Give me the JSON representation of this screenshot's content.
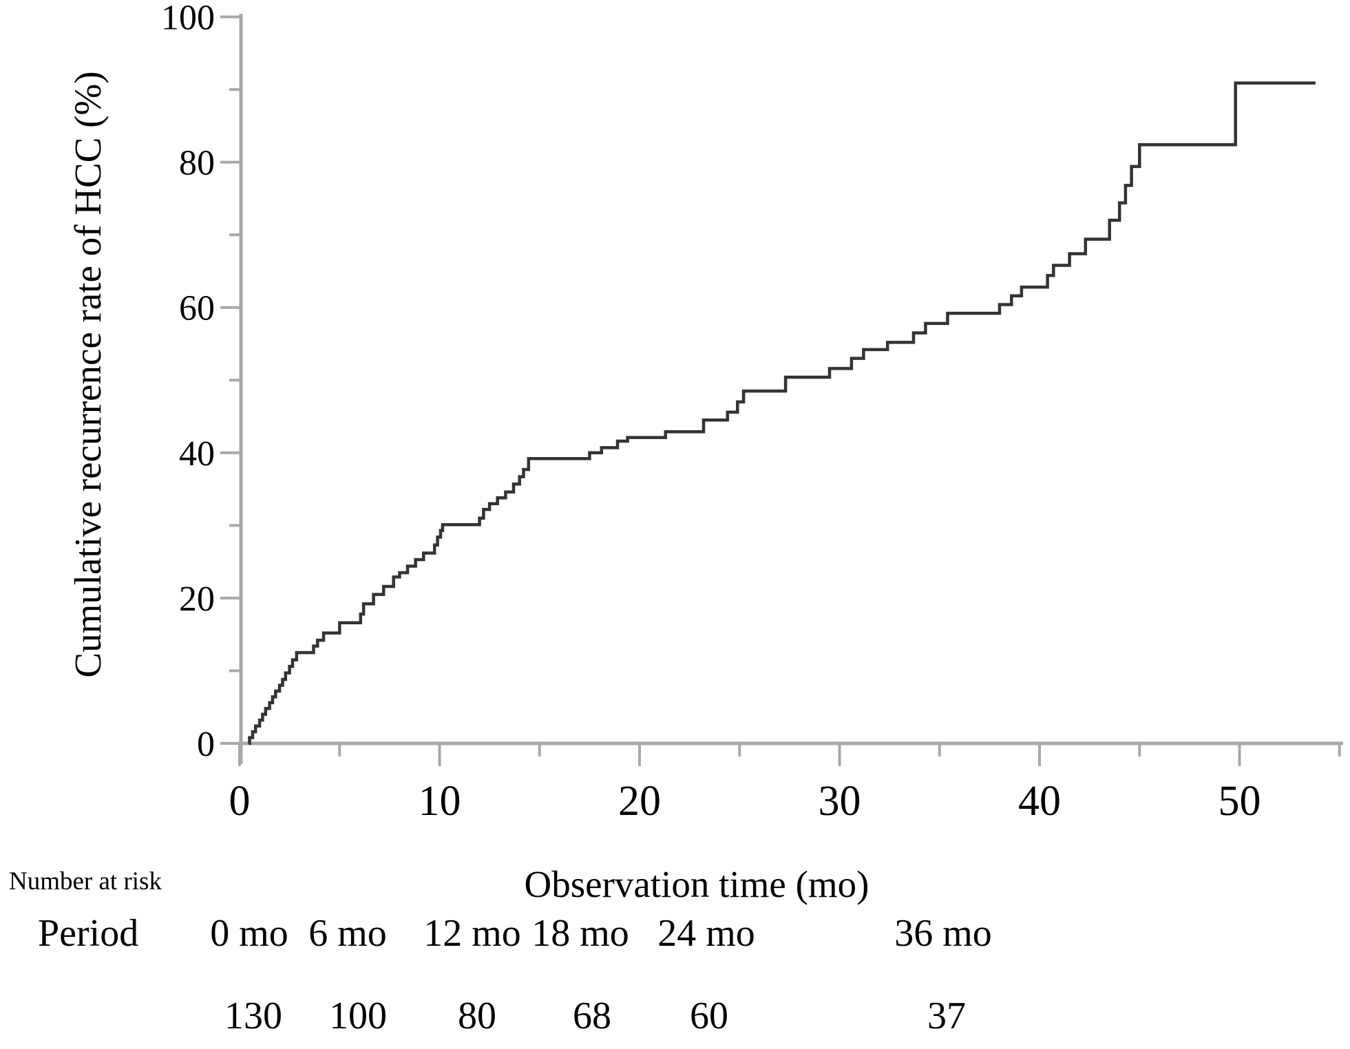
{
  "figure": {
    "background": "#ffffff",
    "colors": {
      "axis": "#a8a8a8",
      "curve": "#333333",
      "text": "#000000"
    },
    "y_axis": {
      "title": "Cumulative recurrence rate of HCC (%)",
      "major_ticks": [
        0,
        20,
        40,
        60,
        80,
        100
      ],
      "minor_ticks": [
        10,
        30,
        50,
        70,
        90
      ],
      "range": [
        0,
        100
      ]
    },
    "x_axis": {
      "title": "Observation time (mo)",
      "major_ticks": [
        0,
        10,
        20,
        30,
        40,
        50
      ],
      "minor_ticks": [
        5,
        15,
        25,
        35,
        45,
        55
      ],
      "range": [
        0,
        55.5
      ]
    }
  },
  "chart_data": {
    "type": "line",
    "subtype": "kaplan-meier-step",
    "title": "",
    "xlabel": "Observation time (mo)",
    "ylabel": "Cumulative recurrence rate of HCC (%)",
    "xlim": [
      0,
      55.5
    ],
    "ylim": [
      0,
      100
    ],
    "grid": false,
    "legend": "none",
    "series": [
      {
        "name": "Cumulative recurrence rate of HCC",
        "start": [
          0.45,
          0
        ],
        "end_x": 53.8,
        "steps": [
          [
            0.5,
            0.8
          ],
          [
            0.65,
            1.6
          ],
          [
            0.8,
            2.4
          ],
          [
            1.0,
            3.2
          ],
          [
            1.15,
            4.0
          ],
          [
            1.3,
            4.8
          ],
          [
            1.5,
            5.6
          ],
          [
            1.65,
            6.4
          ],
          [
            1.8,
            7.2
          ],
          [
            2.0,
            8.0
          ],
          [
            2.15,
            8.8
          ],
          [
            2.3,
            9.7
          ],
          [
            2.5,
            10.6
          ],
          [
            2.65,
            11.5
          ],
          [
            2.85,
            12.5
          ],
          [
            3.7,
            13.4
          ],
          [
            3.9,
            14.2
          ],
          [
            4.2,
            15.2
          ],
          [
            5.0,
            16.6
          ],
          [
            6.05,
            17.8
          ],
          [
            6.2,
            19.2
          ],
          [
            6.7,
            20.5
          ],
          [
            7.2,
            21.6
          ],
          [
            7.7,
            22.9
          ],
          [
            8.0,
            23.5
          ],
          [
            8.4,
            24.4
          ],
          [
            8.8,
            25.3
          ],
          [
            9.2,
            26.2
          ],
          [
            9.75,
            27.3
          ],
          [
            9.9,
            28.4
          ],
          [
            10.05,
            29.3
          ],
          [
            10.15,
            30.1
          ],
          [
            12.0,
            31.0
          ],
          [
            12.2,
            32.2
          ],
          [
            12.5,
            33.0
          ],
          [
            12.9,
            33.8
          ],
          [
            13.3,
            34.6
          ],
          [
            13.7,
            35.7
          ],
          [
            14.0,
            36.7
          ],
          [
            14.2,
            37.7
          ],
          [
            14.45,
            39.2
          ],
          [
            17.5,
            40.0
          ],
          [
            18.1,
            40.7
          ],
          [
            18.9,
            41.6
          ],
          [
            19.4,
            42.1
          ],
          [
            21.3,
            42.9
          ],
          [
            23.2,
            44.5
          ],
          [
            24.4,
            45.6
          ],
          [
            24.9,
            47.0
          ],
          [
            25.2,
            48.5
          ],
          [
            27.3,
            50.4
          ],
          [
            29.5,
            51.6
          ],
          [
            30.6,
            53.0
          ],
          [
            31.2,
            54.2
          ],
          [
            32.4,
            55.2
          ],
          [
            33.7,
            56.5
          ],
          [
            34.3,
            57.8
          ],
          [
            35.4,
            59.2
          ],
          [
            38.0,
            60.4
          ],
          [
            38.6,
            61.6
          ],
          [
            39.1,
            62.8
          ],
          [
            40.4,
            64.4
          ],
          [
            40.7,
            65.8
          ],
          [
            41.5,
            67.4
          ],
          [
            42.3,
            69.4
          ],
          [
            43.5,
            72.0
          ],
          [
            44.0,
            74.4
          ],
          [
            44.3,
            76.8
          ],
          [
            44.6,
            79.4
          ],
          [
            45.0,
            82.4
          ],
          [
            49.8,
            90.9
          ]
        ]
      }
    ],
    "number_at_risk": {
      "times_mo": [
        0,
        6,
        12,
        18,
        24,
        36
      ],
      "counts": [
        130,
        100,
        80,
        68,
        60,
        37
      ]
    }
  },
  "risk_table": {
    "heading": "Number at risk",
    "row_label": "Period",
    "columns": [
      {
        "period": "0 mo",
        "value": "130"
      },
      {
        "period": "6 mo",
        "value": "100"
      },
      {
        "period": "12 mo",
        "value": "80"
      },
      {
        "period": "18 mo",
        "value": "68"
      },
      {
        "period": "24 mo",
        "value": "60"
      },
      {
        "period": "36 mo",
        "value": "37"
      }
    ]
  }
}
